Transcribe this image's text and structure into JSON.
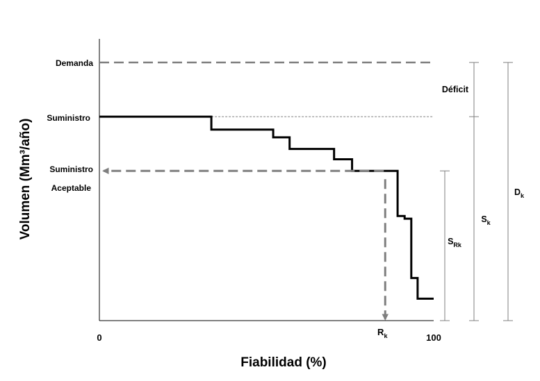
{
  "chart_data": {
    "type": "line",
    "xlabel": "Fiabilidad (%)",
    "ylabel": "Volumen (Mm³/año)",
    "x_ticks": [
      "0",
      "100"
    ],
    "xlim": [
      0,
      100
    ],
    "ylim": [
      0,
      100
    ],
    "levels": {
      "demanda": {
        "label": "Demanda",
        "y": 100
      },
      "suministro": {
        "label": "Suministro",
        "y": 79
      },
      "aceptable": {
        "label1": "Suministro",
        "label2": "Aceptable",
        "y": 58
      }
    },
    "supply_curve": {
      "x": [
        0,
        33.5,
        33.5,
        52,
        52,
        56.9,
        56.9,
        70.2,
        70.2,
        75.6,
        75.6,
        77.1,
        77.1,
        89.2,
        89.2,
        91.3,
        91.3,
        93.3,
        93.3,
        95.2,
        95.2,
        100
      ],
      "y": [
        79,
        79,
        74,
        74,
        71,
        71,
        66.5,
        66.5,
        62.5,
        62.5,
        58,
        58,
        58,
        58,
        40.5,
        40.5,
        39.5,
        39.5,
        16.5,
        16.5,
        8.5,
        8.5
      ]
    },
    "rk": {
      "label": "R",
      "sub": "k",
      "x": 85.5
    },
    "brackets": [
      {
        "name": "deficit",
        "label": "Déficit",
        "from": 79,
        "to": 100
      },
      {
        "name": "srk",
        "label": "S",
        "sub": "Rk",
        "from": 0,
        "to": 58
      },
      {
        "name": "sk",
        "label": "S",
        "sub": "k",
        "from": 0,
        "to": 100
      },
      {
        "name": "dk",
        "label": "D",
        "sub": "k",
        "from": 0,
        "to": 100
      }
    ]
  }
}
